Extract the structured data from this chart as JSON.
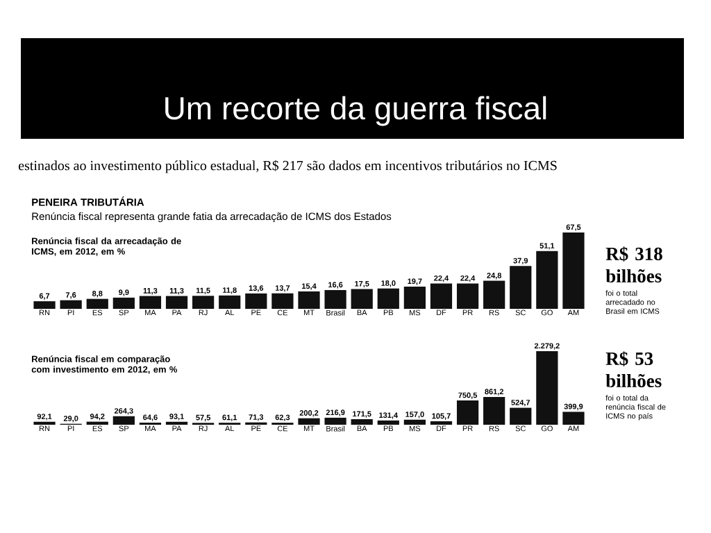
{
  "chart_data": [
    {
      "type": "bar",
      "title": "PENEIRA TRIBUTÁRIA",
      "subtitle": "Renúncia fiscal representa grande fatia da arrecadação de ICMS dos Estados",
      "ylabel": "Renúncia fiscal da arrecadação de ICMS, em 2012, em %",
      "categories": [
        "RN",
        "PI",
        "ES",
        "SP",
        "MA",
        "PA",
        "RJ",
        "AL",
        "PE",
        "CE",
        "MT",
        "Brasil",
        "BA",
        "PB",
        "MS",
        "DF",
        "PR",
        "RS",
        "SC",
        "GO",
        "AM"
      ],
      "values": [
        6.7,
        7.6,
        8.8,
        9.9,
        11.3,
        11.3,
        11.5,
        11.8,
        13.6,
        13.7,
        15.4,
        16.6,
        17.5,
        18.0,
        19.7,
        22.4,
        22.4,
        24.8,
        37.9,
        51.1,
        67.5
      ],
      "value_labels": [
        "6,7",
        "7,6",
        "8,8",
        "9,9",
        "11,3",
        "11,3",
        "11,5",
        "11,8",
        "13,6",
        "13,7",
        "15,4",
        "16,6",
        "17,5",
        "18,0",
        "19,7",
        "22,4",
        "22,4",
        "24,8",
        "37,9",
        "51,1",
        "67,5"
      ],
      "color": "#111111",
      "tick_labels": "x",
      "annotations": [
        "Um recorte da guerra fiscal",
        "estinados ao investimento público estadual, R$ 217 são dados em incentivos tributários no ICMS",
        "R$ 318 bilhões",
        "foi o total arrecadado no Brasil em ICMS"
      ]
    },
    {
      "type": "bar",
      "ylabel": "Renúncia fiscal em comparação com investimento em 2012, em %",
      "categories": [
        "RN",
        "PI",
        "ES",
        "SP",
        "MA",
        "PA",
        "RJ",
        "AL",
        "PE",
        "CE",
        "MT",
        "Brasil",
        "BA",
        "PB",
        "MS",
        "DF",
        "PR",
        "RS",
        "SC",
        "GO",
        "AM"
      ],
      "values": [
        92.1,
        29.0,
        94.2,
        264.3,
        64.6,
        93.1,
        57.5,
        61.1,
        71.3,
        62.3,
        200.2,
        216.9,
        171.5,
        131.4,
        157.0,
        105.7,
        750.5,
        861.2,
        524.7,
        2279.2,
        399.9
      ],
      "value_labels": [
        "92,1",
        "29,0",
        "94,2",
        "264,3",
        "64,6",
        "93,1",
        "57,5",
        "61,1",
        "71,3",
        "62,3",
        "200,2",
        "216,9",
        "171,5",
        "131,4",
        "157,0",
        "105,7",
        "750,5",
        "861,2",
        "524,7",
        "2.279,2",
        "399,9"
      ],
      "color": "#111111",
      "tick_labels": "x",
      "annotations": [
        "R$ 53 bilhões",
        "foi o total da renúncia fiscal de ICMS no país"
      ]
    }
  ]
}
